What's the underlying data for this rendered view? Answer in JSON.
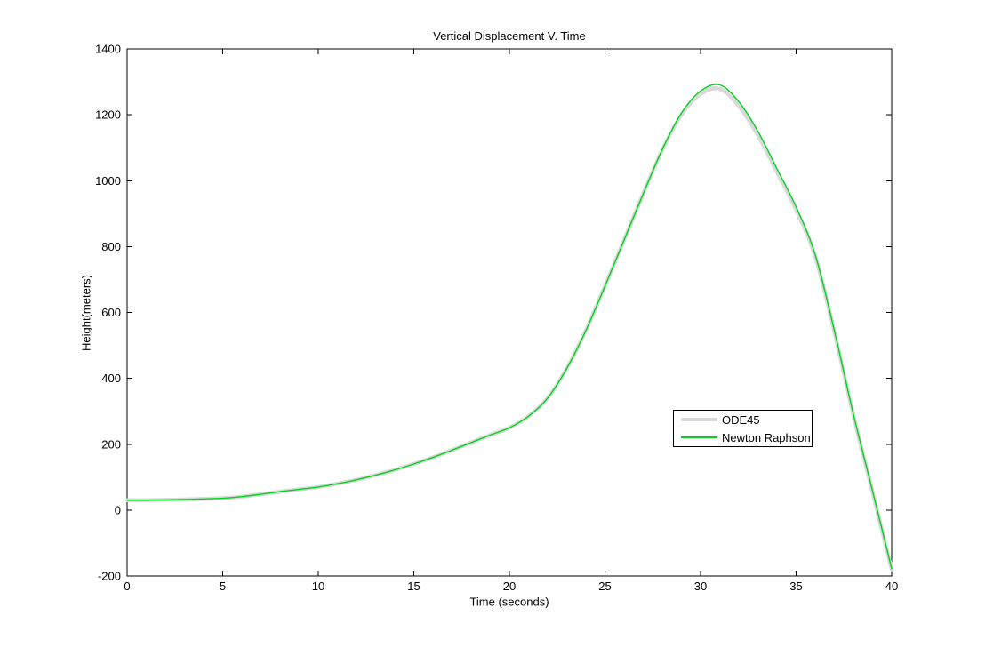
{
  "window": {
    "background": "#ffffff"
  },
  "chart_data": {
    "type": "line",
    "title": "Vertical Displacement V. Time",
    "xlabel": "Time (seconds)",
    "ylabel": "Height(meters)",
    "xlim": [
      0,
      40
    ],
    "ylim": [
      -200,
      1400
    ],
    "xticks": [
      0,
      5,
      10,
      15,
      20,
      25,
      30,
      35,
      40
    ],
    "yticks": [
      -200,
      0,
      200,
      400,
      600,
      800,
      1000,
      1200,
      1400
    ],
    "grid": false,
    "box": true,
    "legend_position": "inside-middle-right",
    "axis_color": "#000000",
    "x": [
      0,
      1,
      2,
      3,
      4,
      5,
      6,
      7,
      8,
      9,
      10,
      11,
      12,
      13,
      14,
      15,
      16,
      17,
      18,
      19,
      20,
      21,
      22,
      23,
      24,
      25,
      26,
      27,
      28,
      29,
      30,
      31,
      32,
      33,
      34,
      35,
      36,
      37,
      38,
      39,
      40
    ],
    "series": [
      {
        "name": "ODE45",
        "color": "#d9d9d9",
        "line_width": 4.5,
        "values": [
          30,
          30,
          31,
          32,
          34,
          36,
          41,
          48,
          56,
          63,
          70,
          80,
          92,
          106,
          122,
          140,
          160,
          182,
          205,
          228,
          250,
          285,
          340,
          430,
          545,
          680,
          820,
          960,
          1093,
          1200,
          1263,
          1279,
          1227,
          1138,
          1026,
          912,
          770,
          542,
          288,
          55,
          -180
        ]
      },
      {
        "name": "Newton Raphson",
        "color": "#00d41e",
        "line_width": 1.4,
        "values": [
          30,
          30,
          31,
          32,
          34,
          36,
          41,
          48,
          56,
          63,
          70,
          80,
          92,
          106,
          122,
          140,
          160,
          182,
          205,
          228,
          250,
          285,
          340,
          430,
          545,
          680,
          820,
          960,
          1095,
          1205,
          1272,
          1291,
          1240,
          1150,
          1036,
          920,
          775,
          545,
          290,
          58,
          -178
        ]
      }
    ]
  },
  "layout_values": {
    "peak_label": "",
    "note": ""
  }
}
